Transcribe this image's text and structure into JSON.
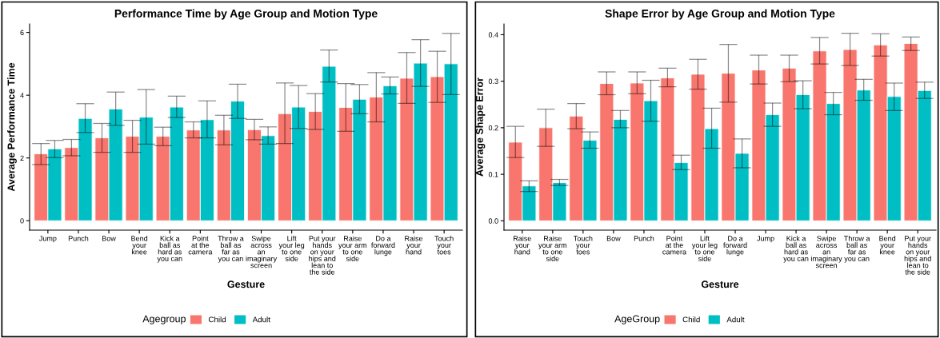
{
  "chart_data": [
    {
      "type": "bar",
      "title": "Performance Time by Age Group and Motion Type",
      "xlabel": "Gesture",
      "ylabel": "Average Performance Time",
      "legend_title": "Agegroup",
      "legend": "bottom",
      "grid": false,
      "categories": [
        "Jump",
        "Punch",
        "Bow",
        "Bend\nyour\nknee",
        "Kick a\nball as\nhard as\nyou can",
        "Point\nat the\ncamera",
        "Throw a\nball as\nfar as\nyou can",
        "Swipe\nacross\nan\nimaginary\nscreen",
        "Lift\nyour leg\nto one\nside",
        "Put your\nhands\non your\nhips and\nlean to\nthe side",
        "Raise\nyour arm\nto one\nside",
        "Do a\nforward\nlunge",
        "Raise\nyour\nhand",
        "Touch\nyour\ntoes"
      ],
      "ylim": [
        -0.3,
        6.27
      ],
      "yticks": [
        0,
        2,
        4,
        6
      ],
      "series": [
        {
          "name": "Child",
          "color": "#f8766d",
          "values": [
            2.13,
            2.33,
            2.64,
            2.69,
            2.69,
            2.89,
            2.89,
            2.9,
            3.41,
            3.48,
            3.61,
            3.94,
            4.54,
            4.59
          ],
          "errors": [
            [
              1.79,
              2.46
            ],
            [
              2.07,
              2.59
            ],
            [
              2.18,
              3.1
            ],
            [
              2.18,
              3.2
            ],
            [
              2.39,
              2.98
            ],
            [
              2.64,
              3.15
            ],
            [
              2.42,
              3.36
            ],
            [
              2.58,
              3.23
            ],
            [
              2.46,
              4.39
            ],
            [
              2.91,
              4.05
            ],
            [
              2.85,
              4.37
            ],
            [
              3.15,
              4.72
            ],
            [
              3.74,
              5.36
            ],
            [
              3.77,
              5.4
            ]
          ]
        },
        {
          "name": "Adult",
          "color": "#00bfc4",
          "values": [
            2.29,
            3.26,
            3.56,
            3.3,
            3.62,
            3.22,
            3.81,
            2.71,
            3.62,
            4.92,
            3.87,
            4.3,
            5.02,
            5.0
          ],
          "errors": [
            [
              2.01,
              2.56
            ],
            [
              2.81,
              3.73
            ],
            [
              3.04,
              4.1
            ],
            [
              2.44,
              4.18
            ],
            [
              3.29,
              3.97
            ],
            [
              2.64,
              3.82
            ],
            [
              3.26,
              4.35
            ],
            [
              2.44,
              2.99
            ],
            [
              2.94,
              4.31
            ],
            [
              4.42,
              5.44
            ],
            [
              3.41,
              4.34
            ],
            [
              4.04,
              4.58
            ],
            [
              4.28,
              5.77
            ],
            [
              4.02,
              5.97
            ]
          ]
        }
      ]
    },
    {
      "type": "bar",
      "title": "Shape Error by Age Group and Motion Type",
      "xlabel": "Gesture",
      "ylabel": "Average Shape Error",
      "legend_title": "AgeGroup",
      "legend": "bottom",
      "grid": false,
      "categories": [
        "Raise\nyour\nhand",
        "Raise\nyour arm\nto one\nside",
        "Touch\nyour\ntoes",
        "Bow",
        "Punch",
        "Point\nat the\ncamera",
        "Lift\nyour leg\nto one\nside",
        "Do a\nforward\nlunge",
        "Jump",
        "Kick a\nball as\nhard as\nyou can",
        "Swipe\nacross\nan\nimaginary\nscreen",
        "Throw a\nball as\nfar as\nyou can",
        "Bend\nyour\nknee",
        "Put your\nhands\non your\nhips and\nlean to\nthe side"
      ],
      "ylim": [
        -0.02,
        0.423
      ],
      "yticks": [
        {
          "value": 0,
          "label": "0.0"
        },
        0.1,
        0.2,
        0.3,
        0.4
      ],
      "series": [
        {
          "name": "Child",
          "color": "#f8766d",
          "values": [
            0.169,
            0.2,
            0.225,
            0.295,
            0.296,
            0.307,
            0.315,
            0.317,
            0.324,
            0.328,
            0.365,
            0.368,
            0.378,
            0.381
          ],
          "errors": [
            [
              0.136,
              0.203
            ],
            [
              0.16,
              0.24
            ],
            [
              0.198,
              0.252
            ],
            [
              0.271,
              0.32
            ],
            [
              0.273,
              0.32
            ],
            [
              0.288,
              0.328
            ],
            [
              0.283,
              0.347
            ],
            [
              0.255,
              0.379
            ],
            [
              0.294,
              0.356
            ],
            [
              0.299,
              0.356
            ],
            [
              0.337,
              0.394
            ],
            [
              0.334,
              0.403
            ],
            [
              0.354,
              0.402
            ],
            [
              0.366,
              0.395
            ]
          ]
        },
        {
          "name": "Adult",
          "color": "#00bfc4",
          "values": [
            0.075,
            0.082,
            0.173,
            0.218,
            0.258,
            0.125,
            0.198,
            0.145,
            0.228,
            0.271,
            0.252,
            0.281,
            0.267,
            0.28
          ],
          "errors": [
            [
              0.063,
              0.086
            ],
            [
              0.076,
              0.089
            ],
            [
              0.156,
              0.191
            ],
            [
              0.2,
              0.237
            ],
            [
              0.214,
              0.302
            ],
            [
              0.11,
              0.141
            ],
            [
              0.156,
              0.242
            ],
            [
              0.114,
              0.176
            ],
            [
              0.203,
              0.253
            ],
            [
              0.241,
              0.301
            ],
            [
              0.228,
              0.276
            ],
            [
              0.259,
              0.304
            ],
            [
              0.237,
              0.296
            ],
            [
              0.263,
              0.298
            ]
          ]
        }
      ]
    }
  ]
}
